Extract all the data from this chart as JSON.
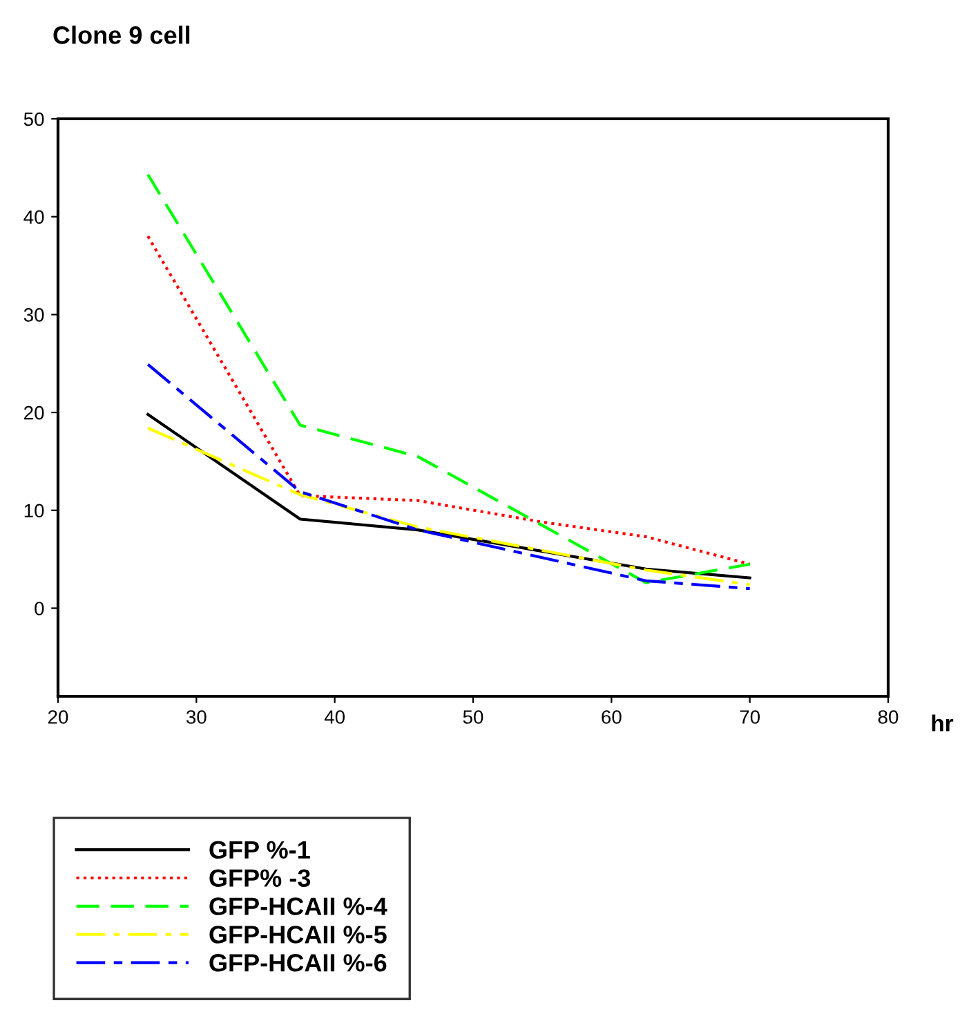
{
  "chart_data": {
    "type": "line",
    "title": "Clone 9 cell",
    "xlabel": "hr",
    "xlim": [
      20,
      80
    ],
    "xticks": [
      20,
      30,
      40,
      50,
      60,
      70,
      80
    ],
    "ylim": [
      -9,
      50
    ],
    "yticks": [
      0,
      10,
      20,
      30,
      40,
      50
    ],
    "grid": false,
    "legend": "bottom left",
    "marker": "none",
    "series": [
      {
        "name": "GFP %-1",
        "color": "#000000",
        "line_style": "solid",
        "x": [
          26.5,
          37.5,
          46,
          62.5,
          70
        ],
        "values": [
          19.8,
          9.1,
          8.0,
          4.0,
          3.1
        ]
      },
      {
        "name": "GFP% -3",
        "color": "#ff0000",
        "line_style": "dotted",
        "x": [
          26.5,
          37.5,
          46,
          55,
          62.5,
          70
        ],
        "values": [
          38,
          11.5,
          11,
          8.8,
          7.3,
          4.5
        ]
      },
      {
        "name": "GFP-HCAII %-4",
        "color": "#00ff00",
        "line_style": "dashed",
        "x": [
          26.5,
          37.5,
          46,
          62.5,
          70
        ],
        "values": [
          44.3,
          18.7,
          15.5,
          2.6,
          4.5
        ]
      },
      {
        "name": "GFP-HCAII %-5",
        "color": "#ffff00",
        "line_style": "dashdot",
        "x": [
          26.5,
          37.5,
          46,
          62.5,
          70
        ],
        "values": [
          18.4,
          11.6,
          8.3,
          3.9,
          2.4
        ]
      },
      {
        "name": "GFP-HCAII %-6",
        "color": "#0000ff",
        "line_style": "longdash",
        "x": [
          26.5,
          37.5,
          46,
          62.5,
          70
        ],
        "values": [
          24.9,
          11.9,
          8.0,
          2.8,
          2.0
        ]
      }
    ]
  }
}
